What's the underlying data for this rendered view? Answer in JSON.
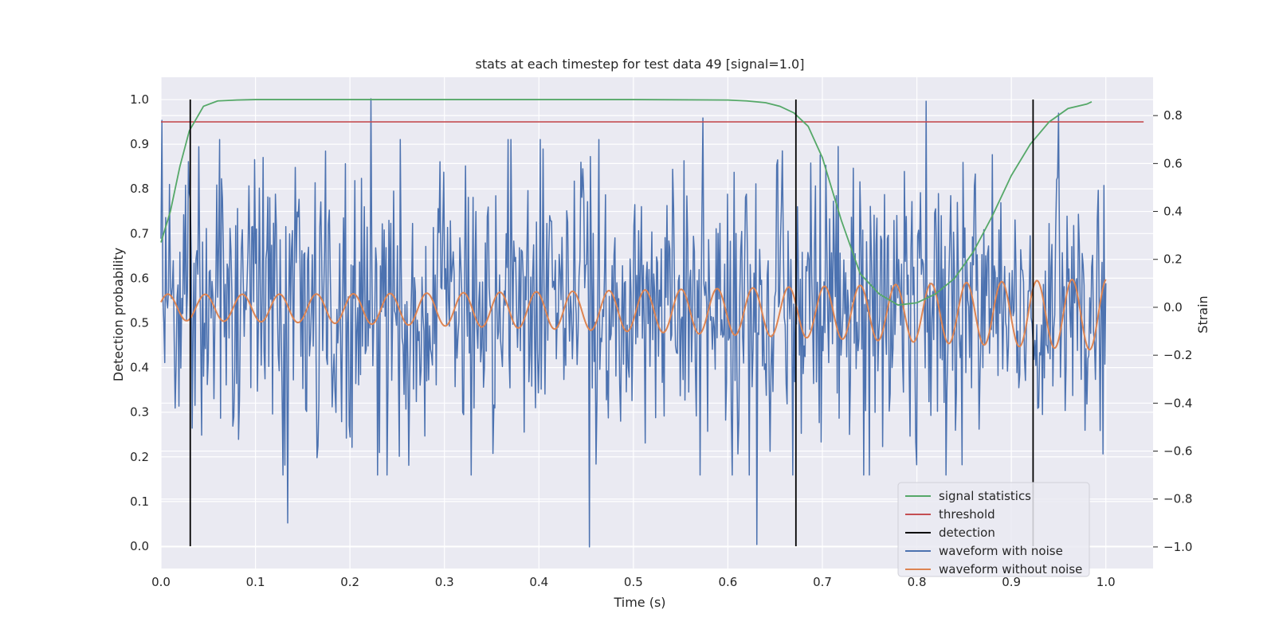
{
  "chart_data": {
    "type": "line",
    "title": "stats at each timestep for test data 49 [signal=1.0]",
    "xlabel": "Time (s)",
    "ylabel_left": "Detection probability",
    "ylabel_right": "Strain",
    "xlim": [
      0.0,
      1.05
    ],
    "ylim_left": [
      -0.05,
      1.05
    ],
    "ylim_right": [
      -1.09,
      0.96
    ],
    "x_ticks": [
      "0.0",
      "0.1",
      "0.2",
      "0.3",
      "0.4",
      "0.5",
      "0.6",
      "0.7",
      "0.8",
      "0.9",
      "1.0"
    ],
    "y_left_ticks": [
      "0.0",
      "0.1",
      "0.2",
      "0.3",
      "0.4",
      "0.5",
      "0.6",
      "0.7",
      "0.8",
      "0.9",
      "1.0"
    ],
    "y_right_ticks": [
      "−1.0",
      "−0.8",
      "−0.6",
      "−0.4",
      "−0.2",
      "0.0",
      "0.2",
      "0.4",
      "0.6",
      "0.8"
    ],
    "grid": true,
    "background": "#eaeaf2",
    "legend_position": "lower-right",
    "colors": {
      "signal_statistics": "#55a868",
      "threshold": "#c44e52",
      "detection": "#000000",
      "waveform_with_noise": "#4c72b0",
      "waveform_without_noise": "#dd8452"
    },
    "series": [
      {
        "name": "signal statistics",
        "axis": "left",
        "x": [
          0.0,
          0.01,
          0.02,
          0.03,
          0.045,
          0.06,
          0.08,
          0.1,
          0.2,
          0.3,
          0.4,
          0.5,
          0.6,
          0.62,
          0.64,
          0.655,
          0.67,
          0.685,
          0.7,
          0.72,
          0.74,
          0.76,
          0.78,
          0.8,
          0.82,
          0.84,
          0.86,
          0.88,
          0.9,
          0.92,
          0.94,
          0.96,
          0.98,
          0.985
        ],
        "y": [
          0.68,
          0.75,
          0.85,
          0.93,
          0.985,
          0.997,
          0.999,
          1.0,
          1.0,
          1.0,
          1.0,
          1.0,
          0.999,
          0.997,
          0.993,
          0.985,
          0.97,
          0.94,
          0.87,
          0.73,
          0.61,
          0.565,
          0.54,
          0.545,
          0.565,
          0.6,
          0.66,
          0.74,
          0.83,
          0.9,
          0.95,
          0.98,
          0.99,
          0.995
        ]
      },
      {
        "name": "threshold",
        "axis": "left",
        "x": [
          0.0,
          1.04
        ],
        "y": [
          0.95,
          0.95
        ]
      },
      {
        "name": "detection",
        "axis": "left",
        "x_positions": [
          0.031,
          0.672,
          0.923
        ],
        "y_range": [
          0.0,
          1.0
        ]
      },
      {
        "name": "waveform with noise",
        "axis": "right",
        "x_range": [
          0.0,
          1.0
        ],
        "sample_count": 1000,
        "y_range_observed": [
          -1.0,
          0.87
        ],
        "noise_std": 0.3,
        "spikes": [
          {
            "x": 0.001,
            "y": 0.78
          },
          {
            "x": 0.04,
            "y": 0.67
          },
          {
            "x": 0.134,
            "y": -0.9
          },
          {
            "x": 0.222,
            "y": 0.87
          },
          {
            "x": 0.453,
            "y": -1.0
          },
          {
            "x": 0.574,
            "y": 0.79
          },
          {
            "x": 0.631,
            "y": -0.99
          },
          {
            "x": 0.81,
            "y": 0.86
          },
          {
            "x": 0.95,
            "y": 0.81
          }
        ]
      },
      {
        "name": "waveform without noise",
        "axis": "right",
        "x_range": [
          0.0,
          1.0
        ],
        "frequency_hz": 25.3,
        "frequency_hz_end": 27.0,
        "amplitude_start": 0.055,
        "amplitude_end": 0.15,
        "offset_start": 0.0,
        "offset_end": -0.03
      }
    ]
  },
  "legend": {
    "items": [
      {
        "label": "signal statistics",
        "color": "#55a868"
      },
      {
        "label": "threshold",
        "color": "#c44e52"
      },
      {
        "label": "detection",
        "color": "#000000"
      },
      {
        "label": "waveform with noise",
        "color": "#4c72b0"
      },
      {
        "label": "waveform without noise",
        "color": "#dd8452"
      }
    ]
  }
}
